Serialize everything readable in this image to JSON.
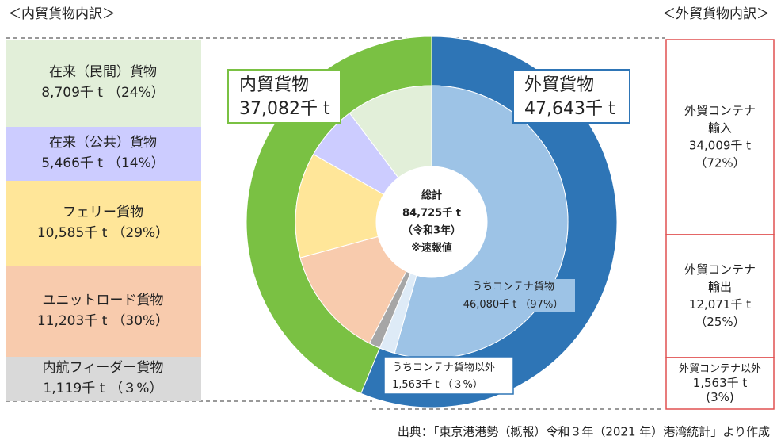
{
  "chart_data": {
    "type": "donut",
    "left_title": "＜内貿貨物内訳＞",
    "right_title": "＜外貿貨物内訳＞",
    "center_text": [
      "総計",
      "84,725千 t",
      "（令和3年）",
      "※速報値"
    ],
    "outer": {
      "categories": [
        "内貿貨物",
        "外貿貨物"
      ],
      "values": [
        37082,
        47643
      ],
      "value_labels": [
        "37,082千 t",
        "47,643千 t"
      ],
      "colors": [
        "#7ac143",
        "#2e75b6"
      ]
    },
    "inner": {
      "categories": [
        "在来（民間）貨物",
        "在来（公共）貨物",
        "フェリー貨物",
        "ユニットロード貨物",
        "内航フィーダー貨物",
        "うちコンテナ貨物",
        "うちコンテナ貨物以外"
      ],
      "values": [
        8709,
        5466,
        10585,
        11203,
        1119,
        46080,
        1563
      ],
      "value_labels": [
        "8,709千 t",
        "5,466千 t",
        "10,585千 t",
        "11,203千 t",
        "1,119千 t",
        "46,080千 t",
        "1,563千 t"
      ],
      "percents": [
        24,
        14,
        29,
        30,
        3,
        97,
        3
      ],
      "percent_labels": [
        "（24%）",
        "（14%）",
        "（29%）",
        "（30%）",
        "（３%）",
        "（97%）",
        "（３%）"
      ],
      "colors": [
        "#e2efd9",
        "#ccccff",
        "#ffe699",
        "#f8cbad",
        "#a6a6a6",
        "#9dc3e6",
        "#deebf7"
      ]
    },
    "export_breakdown": {
      "categories": [
        [
          "外貿コンテナ",
          "輸入"
        ],
        [
          "外貿コンテナ",
          "輸出"
        ],
        [
          "外貿コンテナ以外"
        ]
      ],
      "values": [
        34009,
        12071,
        1563
      ],
      "value_labels": [
        "34,009千 t",
        "12,071千 t",
        "1,563千 t"
      ],
      "percents": [
        72,
        25,
        3
      ],
      "percent_labels": [
        "（72%）",
        "（25%）",
        "(3%)"
      ]
    },
    "source": "出典：「東京港港勢（概報）令和３年（2021 年）港湾統計」より作成"
  }
}
